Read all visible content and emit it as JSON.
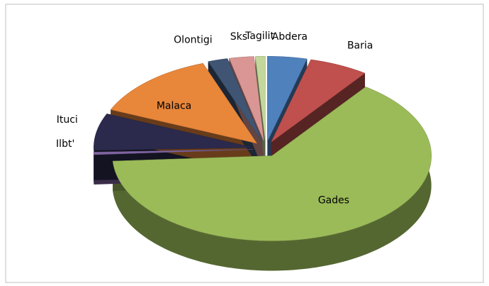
{
  "chart_data": {
    "type": "pie",
    "categories": [
      "Abdera",
      "Baria",
      "Gades",
      "Ilbt'",
      "Ituci",
      "Malaca",
      "Olontigi",
      "Sks",
      "Tagilit"
    ],
    "values": [
      4,
      6,
      64,
      0.5,
      7,
      13,
      2,
      2.5,
      1
    ],
    "colors": [
      "#4f81bd",
      "#c0504d",
      "#9bbb59",
      "#8064a2",
      "#2b2a4c",
      "#e8863a",
      "#3f5573",
      "#d99694",
      "#c3d69b"
    ]
  }
}
